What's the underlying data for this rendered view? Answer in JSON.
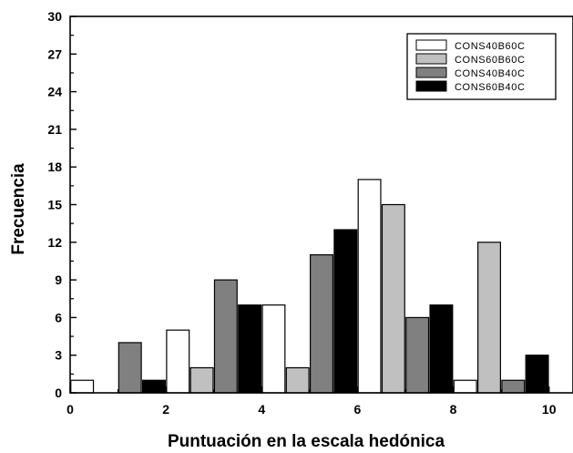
{
  "chart_data": {
    "type": "bar",
    "xlabel": "Puntuación en la escala hedónica",
    "ylabel": "Frecuencia",
    "xlim": [
      0,
      10.5
    ],
    "ylim": [
      0,
      30
    ],
    "xticks": [
      0,
      2,
      4,
      6,
      8,
      10
    ],
    "yticks": [
      0,
      3,
      6,
      9,
      12,
      15,
      18,
      21,
      24,
      27,
      30
    ],
    "bin_width": 0.5,
    "legend_position": "top-right",
    "grid": false,
    "series": [
      {
        "name": "CONS40B60C",
        "color": "#ffffff",
        "bars": [
          {
            "x": 0,
            "y": 1
          },
          {
            "x": 2,
            "y": 5
          },
          {
            "x": 4,
            "y": 7
          },
          {
            "x": 6,
            "y": 17
          },
          {
            "x": 8,
            "y": 1
          }
        ]
      },
      {
        "name": "CONS60B60C",
        "color": "#c0c0c0",
        "bars": [
          {
            "x": 2.5,
            "y": 2
          },
          {
            "x": 4.5,
            "y": 2
          },
          {
            "x": 6.5,
            "y": 15
          },
          {
            "x": 8.5,
            "y": 12
          }
        ]
      },
      {
        "name": "CONS40B40C",
        "color": "#808080",
        "bars": [
          {
            "x": 1,
            "y": 4
          },
          {
            "x": 3,
            "y": 9
          },
          {
            "x": 5,
            "y": 11
          },
          {
            "x": 7,
            "y": 6
          },
          {
            "x": 9,
            "y": 1
          }
        ]
      },
      {
        "name": "CONS60B40C",
        "color": "#000000",
        "bars": [
          {
            "x": 1.5,
            "y": 1
          },
          {
            "x": 3.5,
            "y": 7
          },
          {
            "x": 5.5,
            "y": 13
          },
          {
            "x": 7.5,
            "y": 7
          },
          {
            "x": 9.5,
            "y": 3
          }
        ]
      }
    ]
  }
}
